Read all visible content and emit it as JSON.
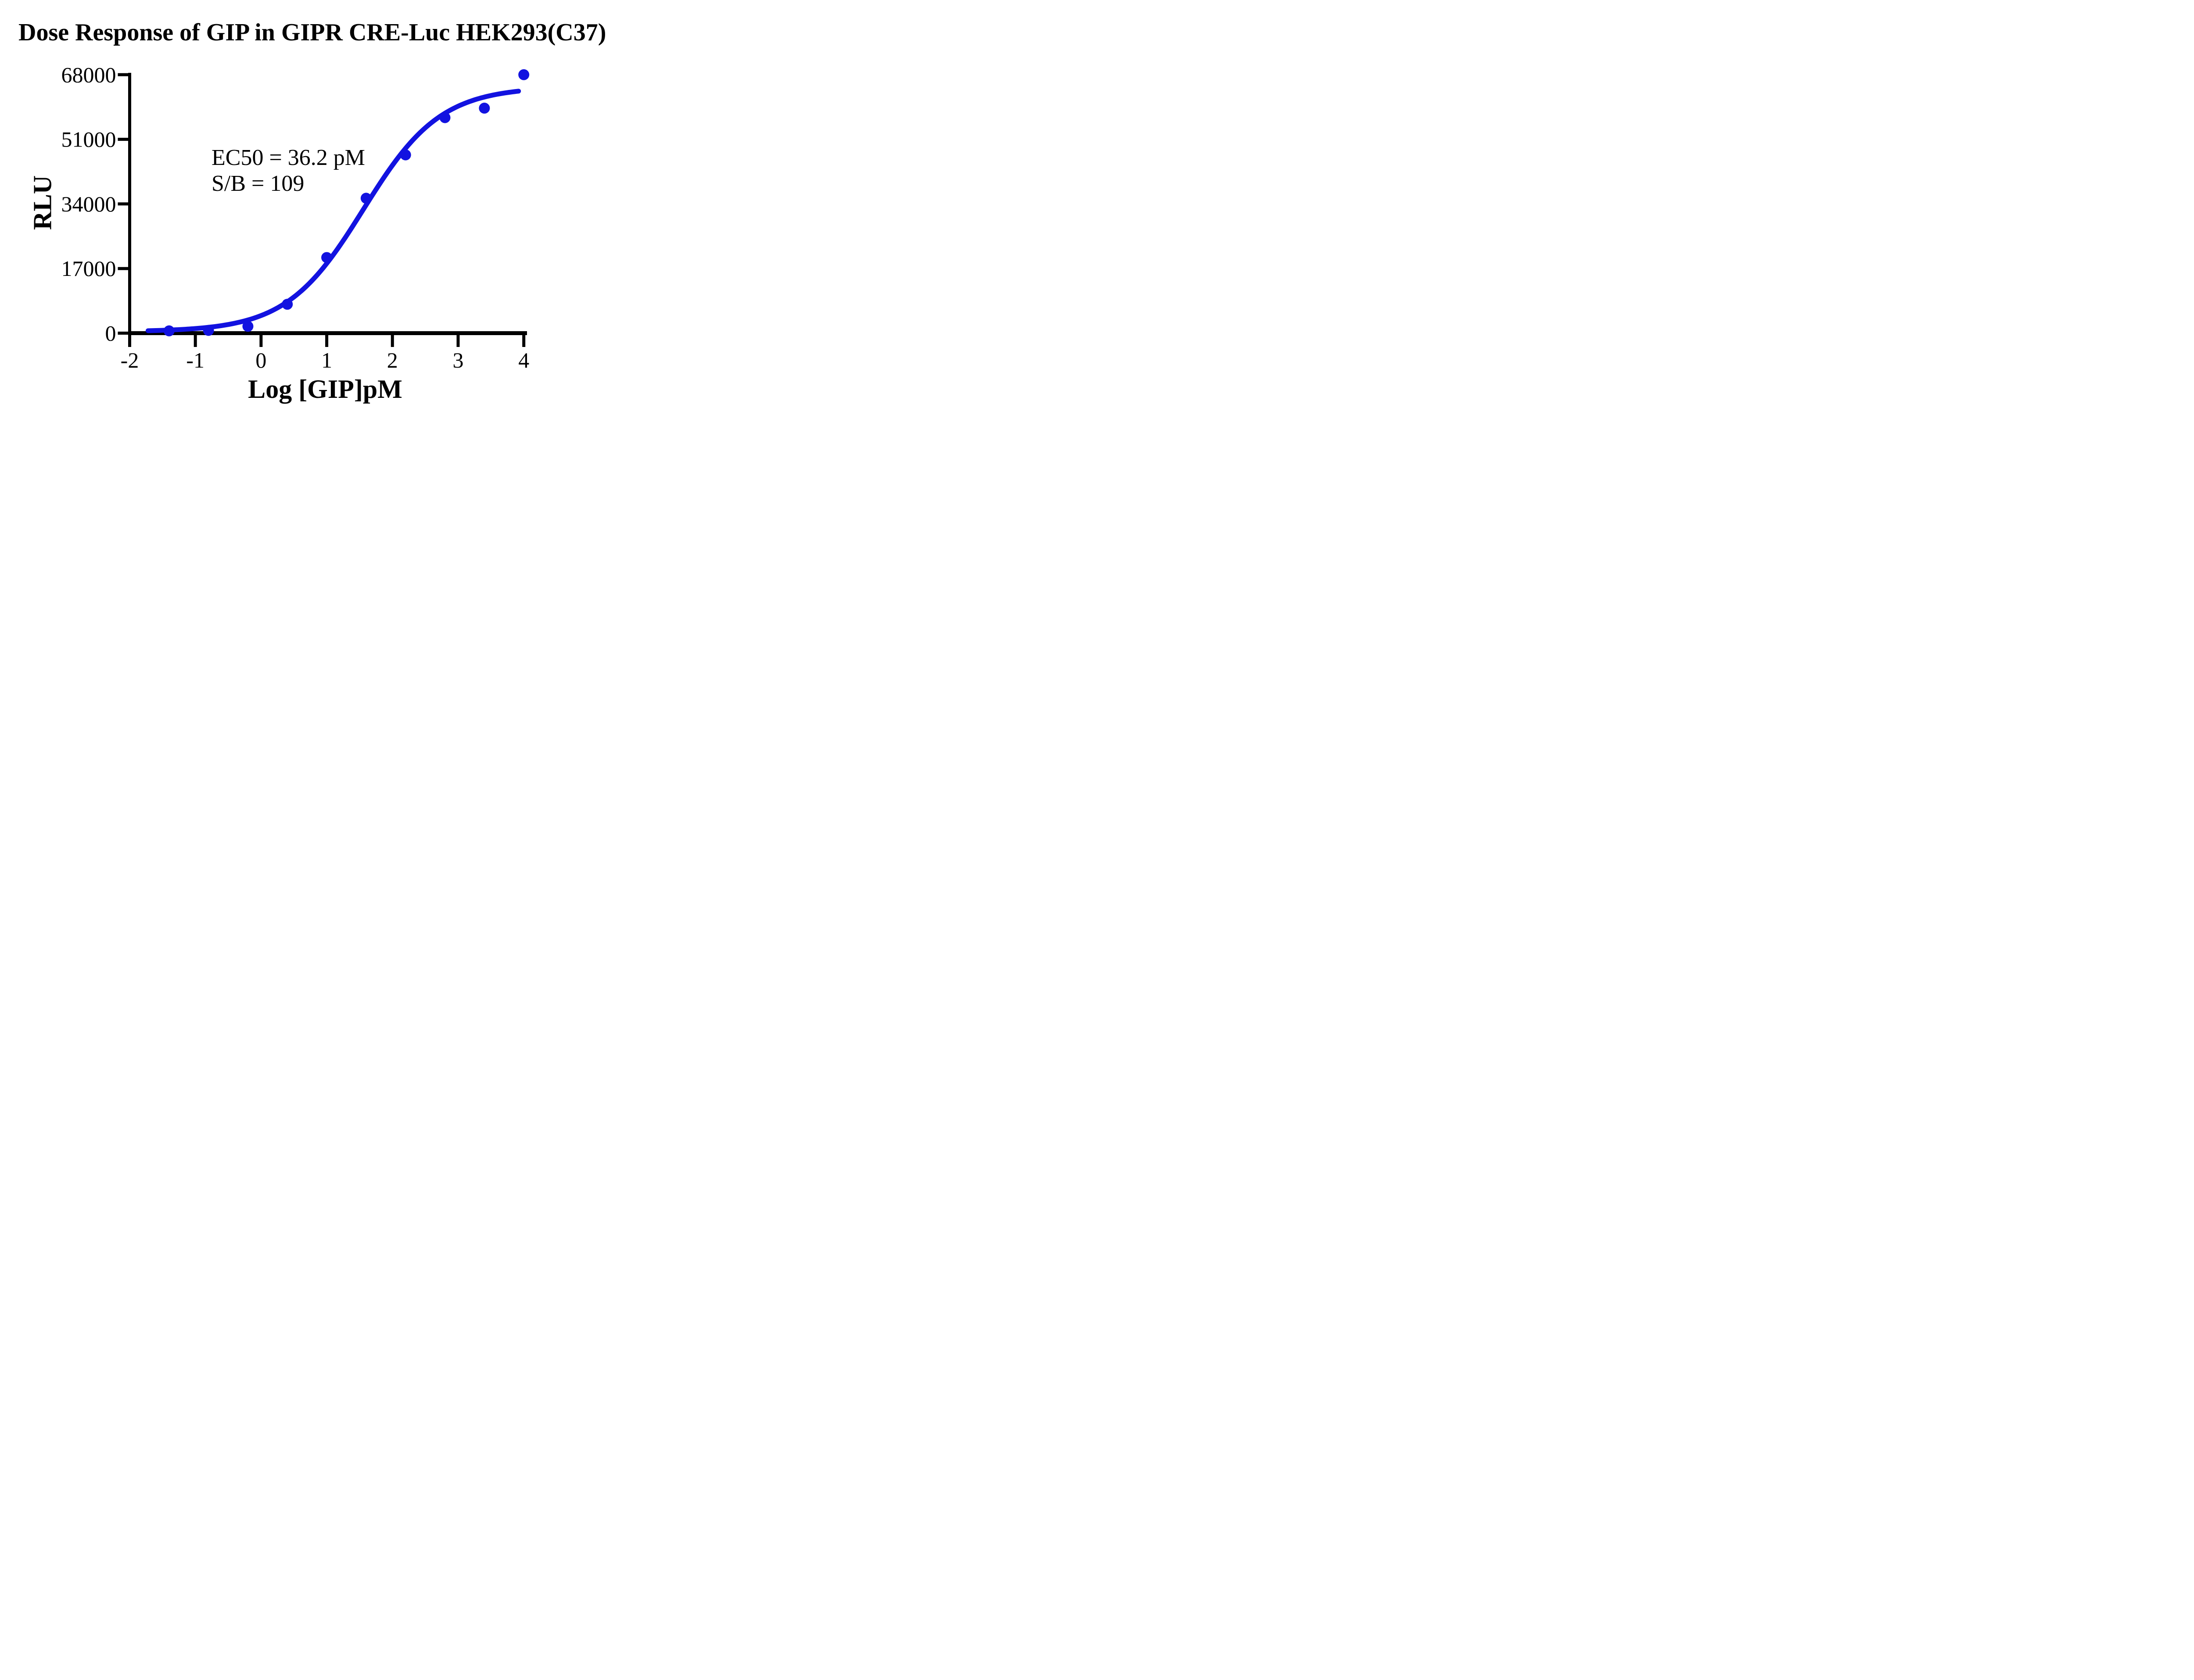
{
  "title": "Dose Response of GIP in GIPR CRE-Luc HEK293(C37)",
  "annotation": {
    "line1": "EC50 = 36.2 pM",
    "line2": "S/B = 109"
  },
  "colors": {
    "series_blue": "#1212E0",
    "axis_black": "#000000",
    "background": "#FFFFFF"
  },
  "chart_data": {
    "type": "scatter",
    "title": "Dose Response of GIP in GIPR CRE-Luc HEK293(C37)",
    "xlabel": "Log [GIP]pM",
    "ylabel": "RLU",
    "xlim": [
      -2,
      4
    ],
    "ylim": [
      0,
      68000
    ],
    "x_ticks": [
      -2,
      -1,
      0,
      1,
      2,
      3,
      4
    ],
    "y_ticks": [
      0,
      17000,
      34000,
      51000,
      68000
    ],
    "grid": false,
    "legend": "none",
    "ec50_pM": 36.2,
    "signal_to_background": 109,
    "series": [
      {
        "name": "GIP",
        "marker": "circle",
        "points": [
          {
            "x": -1.4,
            "y": 600
          },
          {
            "x": -0.8,
            "y": 720
          },
          {
            "x": -0.2,
            "y": 1800
          },
          {
            "x": 0.4,
            "y": 7600
          },
          {
            "x": 1.0,
            "y": 19900
          },
          {
            "x": 1.6,
            "y": 35500
          },
          {
            "x": 2.2,
            "y": 46900
          },
          {
            "x": 2.8,
            "y": 56700
          },
          {
            "x": 3.4,
            "y": 59200
          },
          {
            "x": 4.0,
            "y": 68000
          }
        ]
      }
    ],
    "fit_curve": {
      "model": "4PL-logistic",
      "bottom": 400,
      "top": 64800,
      "log_ec50": 1.559,
      "hill_slope": 0.74,
      "x_start": -1.72,
      "x_end": 3.93
    }
  }
}
